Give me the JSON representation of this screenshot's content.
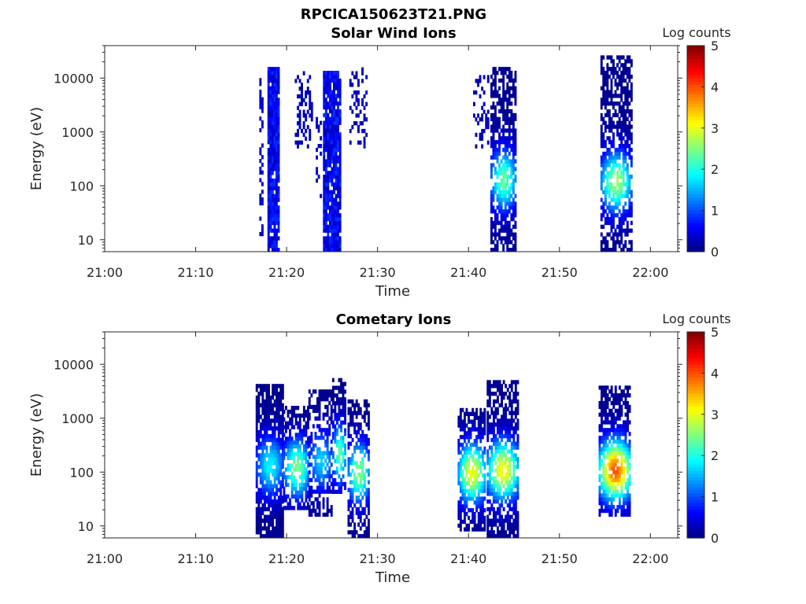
{
  "figure_title": "RPCICA150623T21.PNG",
  "chart_data": [
    {
      "type": "heatmap",
      "title": "Solar Wind Ions",
      "xlabel": "Time",
      "ylabel": "Energy (eV)",
      "x_ticks": [
        "21:00",
        "21:10",
        "21:20",
        "21:30",
        "21:40",
        "21:50",
        "22:00"
      ],
      "x_range_minutes": [
        0,
        63
      ],
      "y_scale": "log",
      "y_ticks": [
        "10",
        "100",
        "1000",
        "10000"
      ],
      "y_range": [
        6,
        40000
      ],
      "colorbar": {
        "label": "Log counts",
        "ticks": [
          "0",
          "1",
          "2",
          "3",
          "4",
          "5"
        ],
        "range": [
          0,
          5
        ],
        "colormap": "jet"
      },
      "bursts": [
        {
          "t_start": 17.0,
          "t_end": 17.3,
          "e_min": 10,
          "e_max": 9000,
          "peak": 0.6,
          "fill": 0.45
        },
        {
          "t_start": 17.9,
          "t_end": 19.2,
          "e_min": 6,
          "e_max": 15000,
          "peak": 0.9,
          "fill": 0.95
        },
        {
          "t_start": 20.9,
          "t_end": 22.8,
          "e_min": 500,
          "e_max": 12000,
          "peak": 0.5,
          "fill": 0.3
        },
        {
          "t_start": 23.2,
          "t_end": 23.7,
          "e_min": 60,
          "e_max": 2000,
          "peak": 0.5,
          "fill": 0.35
        },
        {
          "t_start": 24.0,
          "t_end": 25.8,
          "e_min": 6,
          "e_max": 13000,
          "peak": 0.9,
          "fill": 0.9
        },
        {
          "t_start": 26.9,
          "t_end": 28.8,
          "e_min": 500,
          "e_max": 15000,
          "peak": 0.5,
          "fill": 0.3
        },
        {
          "t_start": 40.5,
          "t_end": 42.2,
          "e_min": 500,
          "e_max": 12000,
          "peak": 0.4,
          "fill": 0.25
        },
        {
          "t_start": 42.4,
          "t_end": 45.2,
          "e_min": 6,
          "e_max": 15000,
          "peak": 2.3,
          "center_e": 120,
          "fill": 0.7
        },
        {
          "t_start": 54.5,
          "t_end": 57.8,
          "e_min": 6,
          "e_max": 25000,
          "peak": 2.6,
          "center_e": 110,
          "fill": 0.65
        }
      ]
    },
    {
      "type": "heatmap",
      "title": "Cometary Ions",
      "xlabel": "Time",
      "ylabel": "Energy (eV)",
      "x_ticks": [
        "21:00",
        "21:10",
        "21:20",
        "21:30",
        "21:40",
        "21:50",
        "22:00"
      ],
      "x_range_minutes": [
        0,
        63
      ],
      "y_scale": "log",
      "y_ticks": [
        "10",
        "100",
        "1000",
        "10000"
      ],
      "y_range": [
        6,
        40000
      ],
      "colorbar": {
        "label": "Log counts",
        "ticks": [
          "0",
          "1",
          "2",
          "3",
          "4",
          "5"
        ],
        "range": [
          0,
          5
        ],
        "colormap": "jet"
      },
      "bursts": [
        {
          "t_start": 16.6,
          "t_end": 19.6,
          "e_min": 6,
          "e_max": 4000,
          "peak": 1.8,
          "center_e": 120,
          "fill": 0.85
        },
        {
          "t_start": 19.6,
          "t_end": 22.4,
          "e_min": 20,
          "e_max": 1500,
          "peak": 2.4,
          "center_e": 110,
          "fill": 0.7
        },
        {
          "t_start": 22.4,
          "t_end": 25.0,
          "e_min": 15,
          "e_max": 3000,
          "peak": 1.6,
          "center_e": 150,
          "fill": 0.55
        },
        {
          "t_start": 25.0,
          "t_end": 26.5,
          "e_min": 40,
          "e_max": 5000,
          "peak": 2.3,
          "center_e": 200,
          "fill": 0.6
        },
        {
          "t_start": 26.7,
          "t_end": 29.0,
          "e_min": 6,
          "e_max": 2000,
          "peak": 2.5,
          "center_e": 90,
          "fill": 0.6
        },
        {
          "t_start": 38.8,
          "t_end": 41.8,
          "e_min": 8,
          "e_max": 1500,
          "peak": 3.0,
          "center_e": 90,
          "fill": 0.7
        },
        {
          "t_start": 42.0,
          "t_end": 45.4,
          "e_min": 6,
          "e_max": 4500,
          "peak": 3.1,
          "center_e": 100,
          "fill": 0.7
        },
        {
          "t_start": 54.3,
          "t_end": 57.8,
          "e_min": 15,
          "e_max": 4000,
          "peak": 3.9,
          "center_e": 100,
          "fill": 0.75
        }
      ]
    }
  ]
}
